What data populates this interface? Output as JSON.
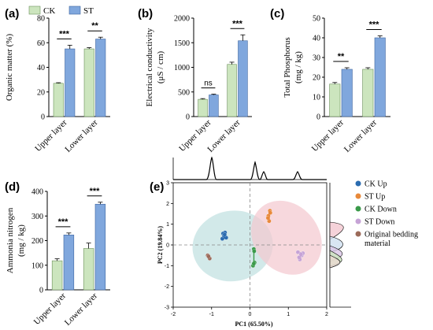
{
  "legend": {
    "ck_label": "CK",
    "st_label": "ST",
    "ck_color": "#cce5be",
    "st_color": "#80a7dd"
  },
  "chart_data": [
    {
      "type": "bar",
      "label": "(a)",
      "ylabel": "Organic matter (%)",
      "categories": [
        "Upper layer",
        "Lower layer"
      ],
      "ylim": [
        0,
        80
      ],
      "yticks": [
        0,
        20,
        40,
        60,
        80
      ],
      "series": [
        {
          "name": "CK",
          "values": [
            27,
            55
          ],
          "errors": [
            0.5,
            1
          ]
        },
        {
          "name": "ST",
          "values": [
            55,
            63
          ],
          "errors": [
            3,
            1.5
          ]
        }
      ],
      "significance": [
        "***",
        "**"
      ]
    },
    {
      "type": "bar",
      "label": "(b)",
      "ylabel": "Electrical conductivity",
      "ylabel2": "(μS / cm)",
      "categories": [
        "Upper layer",
        "Lower layer"
      ],
      "ylim": [
        0,
        2000
      ],
      "yticks": [
        0,
        500,
        1000,
        1500,
        2000
      ],
      "series": [
        {
          "name": "CK",
          "values": [
            350,
            1060
          ],
          "errors": [
            15,
            45
          ]
        },
        {
          "name": "ST",
          "values": [
            440,
            1540
          ],
          "errors": [
            15,
            120
          ]
        }
      ],
      "significance": [
        "ns",
        "***"
      ]
    },
    {
      "type": "bar",
      "label": "(c)",
      "ylabel": "Total Phosphorus",
      "ylabel2": "(mg / kg)",
      "categories": [
        "Upper layer",
        "Lower layer"
      ],
      "ylim": [
        0,
        50
      ],
      "yticks": [
        0,
        10,
        20,
        30,
        40,
        50
      ],
      "series": [
        {
          "name": "CK",
          "values": [
            16.5,
            24
          ],
          "errors": [
            0.8,
            0.8
          ]
        },
        {
          "name": "ST",
          "values": [
            24,
            40
          ],
          "errors": [
            0.8,
            1
          ]
        }
      ],
      "significance": [
        "**",
        "***"
      ]
    },
    {
      "type": "bar",
      "label": "(d)",
      "ylabel": "Ammonia nitrogen",
      "ylabel2": "(mg / kg)",
      "categories": [
        "Upper layer",
        "Lower layer"
      ],
      "ylim": [
        0,
        400
      ],
      "yticks": [
        0,
        100,
        200,
        300,
        400
      ],
      "series": [
        {
          "name": "CK",
          "values": [
            118,
            168
          ],
          "errors": [
            8,
            22
          ]
        },
        {
          "name": "ST",
          "values": [
            223,
            348
          ],
          "errors": [
            8,
            8
          ]
        }
      ],
      "significance": [
        "***",
        "***"
      ]
    },
    {
      "type": "scatter",
      "label": "(e)",
      "xlabel": "PC1 (65.50%)",
      "ylabel": "PC2 (19.84%)",
      "xlim": [
        -2,
        2
      ],
      "ylim": [
        -3,
        3
      ],
      "xticks": [
        -2,
        -1,
        0,
        1,
        2
      ],
      "yticks": [
        -3,
        -2,
        -1,
        0,
        1,
        2,
        3
      ],
      "series": [
        {
          "name": "CK Up",
          "color": "#2b6cb0",
          "points": [
            [
              -0.72,
              0.3
            ],
            [
              -0.68,
              0.45
            ],
            [
              -0.65,
              0.6
            ],
            [
              -0.7,
              0.55
            ],
            [
              -0.62,
              0.35
            ],
            [
              -0.66,
              0.5
            ]
          ]
        },
        {
          "name": "ST Up",
          "color": "#e8893a",
          "points": [
            [
              0.5,
              1.15
            ],
            [
              0.48,
              1.4
            ],
            [
              0.52,
              1.65
            ],
            [
              0.47,
              1.3
            ],
            [
              0.53,
              1.55
            ]
          ]
        },
        {
          "name": "CK Down",
          "color": "#3a9a4a",
          "points": [
            [
              0.1,
              -0.2
            ],
            [
              0.12,
              -0.85
            ],
            [
              0.08,
              -1.0
            ],
            [
              0.11,
              -0.3
            ],
            [
              0.1,
              -0.9
            ]
          ]
        },
        {
          "name": "ST Down",
          "color": "#c6a3d6",
          "points": [
            [
              1.25,
              -0.35
            ],
            [
              1.35,
              -0.5
            ],
            [
              1.3,
              -0.7
            ],
            [
              1.38,
              -0.4
            ],
            [
              1.28,
              -0.6
            ],
            [
              1.33,
              -0.45
            ]
          ]
        },
        {
          "name": "Original bedding material",
          "color": "#9c6b5a",
          "points": [
            [
              -1.1,
              -0.5
            ],
            [
              -1.05,
              -0.65
            ],
            [
              -1.08,
              -0.55
            ]
          ]
        }
      ],
      "ellipses": [
        {
          "cx": -0.45,
          "cy": -0.05,
          "rx": 1.05,
          "ry": 1.7,
          "angle": 10,
          "color": "#bfe0df"
        },
        {
          "cx": 0.95,
          "cy": 0.35,
          "rx": 0.85,
          "ry": 1.9,
          "angle": 38,
          "color": "#f3c7cf"
        }
      ]
    }
  ]
}
